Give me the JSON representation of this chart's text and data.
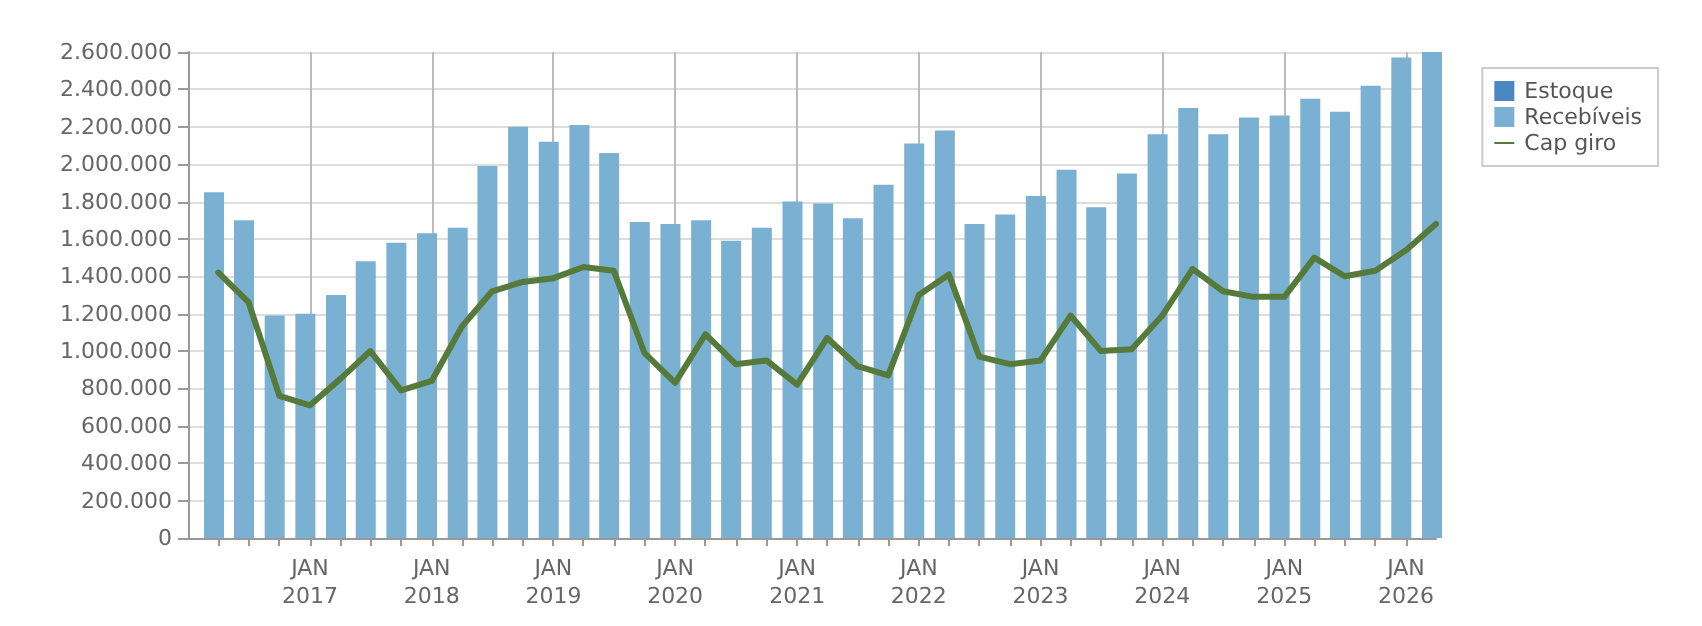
{
  "chart_data": {
    "type": "bar",
    "xlim": [
      "2016-01-01",
      "2026-04-01"
    ],
    "xticks": [
      {
        "value": "2016-04-01",
        "label": null
      },
      {
        "value": "2016-07-01",
        "label": null
      },
      {
        "value": "2016-10-01",
        "label": null
      },
      {
        "value": "2017-01-01",
        "label": "JAN\n2017"
      },
      {
        "value": "2017-04-01",
        "label": null
      },
      {
        "value": "2017-07-01",
        "label": null
      },
      {
        "value": "2017-10-01",
        "label": null
      },
      {
        "value": "2018-01-01",
        "label": "JAN\n2018"
      },
      {
        "value": "2018-04-01",
        "label": null
      },
      {
        "value": "2018-07-01",
        "label": null
      },
      {
        "value": "2018-10-01",
        "label": null
      },
      {
        "value": "2019-01-01",
        "label": "JAN\n2019"
      },
      {
        "value": "2019-04-01",
        "label": null
      },
      {
        "value": "2019-07-01",
        "label": null
      },
      {
        "value": "2019-10-01",
        "label": null
      },
      {
        "value": "2020-01-01",
        "label": "JAN\n2020"
      },
      {
        "value": "2020-04-01",
        "label": null
      },
      {
        "value": "2020-07-01",
        "label": null
      },
      {
        "value": "2020-10-01",
        "label": null
      },
      {
        "value": "2021-01-01",
        "label": "JAN\n2021"
      },
      {
        "value": "2021-04-01",
        "label": null
      },
      {
        "value": "2021-07-01",
        "label": null
      },
      {
        "value": "2021-10-01",
        "label": null
      },
      {
        "value": "2022-01-01",
        "label": "JAN\n2022"
      },
      {
        "value": "2022-04-01",
        "label": null
      },
      {
        "value": "2022-07-01",
        "label": null
      },
      {
        "value": "2022-10-01",
        "label": null
      },
      {
        "value": "2023-01-01",
        "label": "JAN\n2023"
      },
      {
        "value": "2023-04-01",
        "label": null
      },
      {
        "value": "2023-07-01",
        "label": null
      },
      {
        "value": "2023-10-01",
        "label": null
      },
      {
        "value": "2024-01-01",
        "label": "JAN\n2024"
      },
      {
        "value": "2024-04-01",
        "label": null
      },
      {
        "value": "2024-07-01",
        "label": null
      },
      {
        "value": "2024-10-01",
        "label": null
      },
      {
        "value": "2025-01-01",
        "label": "JAN\n2025"
      },
      {
        "value": "2025-04-01",
        "label": null
      },
      {
        "value": "2025-07-01",
        "label": null
      },
      {
        "value": "2025-10-01",
        "label": null
      },
      {
        "value": "2026-01-01",
        "label": "JAN\n2026"
      }
    ],
    "x": [
      "2016-02-15",
      "2016-05-15",
      "2016-08-15",
      "2016-11-15",
      "2017-02-15",
      "2017-05-15",
      "2017-08-15",
      "2017-11-15",
      "2018-02-15",
      "2018-05-15",
      "2018-08-15",
      "2018-11-15",
      "2019-02-15",
      "2019-05-15",
      "2019-08-15",
      "2019-11-15",
      "2020-02-15",
      "2020-05-15",
      "2020-08-15",
      "2020-11-15",
      "2021-02-15",
      "2021-05-15",
      "2021-08-15",
      "2021-11-15",
      "2022-02-15",
      "2022-05-15",
      "2022-08-15",
      "2022-11-15",
      "2023-02-15",
      "2023-05-15",
      "2023-08-15",
      "2023-11-15",
      "2024-02-15",
      "2024-05-15",
      "2024-08-15",
      "2024-11-15",
      "2025-02-15",
      "2025-05-15",
      "2025-08-15",
      "2025-11-15",
      "2026-02-15"
    ],
    "ylim": [
      0,
      2600000
    ],
    "yticks": [
      {
        "value": 0,
        "label": "0"
      },
      {
        "value": 200000,
        "label": "200.000"
      },
      {
        "value": 400000,
        "label": "400.000"
      },
      {
        "value": 600000,
        "label": "600.000"
      },
      {
        "value": 800000,
        "label": "800.000"
      },
      {
        "value": 1000000,
        "label": "1.000.000"
      },
      {
        "value": 1200000,
        "label": "1.200.000"
      },
      {
        "value": 1400000,
        "label": "1.400.000"
      },
      {
        "value": 1600000,
        "label": "1.600.000"
      },
      {
        "value": 1800000,
        "label": "1.800.000"
      },
      {
        "value": 2000000,
        "label": "2.000.000"
      },
      {
        "value": 2200000,
        "label": "2.200.000"
      },
      {
        "value": 2400000,
        "label": "2.400.000"
      },
      {
        "value": 2600000,
        "label": "2.600.000"
      }
    ],
    "grid": true,
    "legend": "top right",
    "series": [
      {
        "name": "Estoque",
        "color": "#4a86c0",
        "values": [
          null,
          null,
          null,
          null,
          null,
          null,
          null,
          null,
          null,
          null,
          null,
          null,
          null,
          null,
          null,
          null,
          null,
          null,
          null,
          null,
          null,
          null,
          null,
          null,
          null,
          null,
          null,
          null,
          null,
          null,
          null,
          null,
          null,
          null,
          null,
          null,
          null,
          null,
          null,
          null,
          null
        ]
      },
      {
        "name": "Recebíveis",
        "color": "#7ab0d2",
        "values": [
          1850000,
          1700000,
          1190000,
          1200000,
          1300000,
          1480000,
          1580000,
          1630000,
          1660000,
          1990000,
          2200000,
          2120000,
          2210000,
          2060000,
          1690000,
          1680000,
          1700000,
          1590000,
          1660000,
          1800000,
          1790000,
          1710000,
          1890000,
          2110000,
          2180000,
          1680000,
          1730000,
          1830000,
          1970000,
          1770000,
          1950000,
          2160000,
          2300000,
          2160000,
          2250000,
          2260000,
          2350000,
          2280000,
          2420000,
          2570000,
          2600000
        ]
      },
      {
        "name": "Cap giro",
        "type": "line",
        "color": "#557a3a",
        "marker": "none",
        "line_style": "solid",
        "x": [
          "2016-04-01",
          "2016-07-01",
          "2016-10-01",
          "2017-01-01",
          "2017-04-01",
          "2017-07-01",
          "2017-10-01",
          "2018-01-01",
          "2018-04-01",
          "2018-07-01",
          "2018-10-01",
          "2019-01-01",
          "2019-04-01",
          "2019-07-01",
          "2019-10-01",
          "2020-01-01",
          "2020-04-01",
          "2020-07-01",
          "2020-10-01",
          "2021-01-01",
          "2021-04-01",
          "2021-07-01",
          "2021-10-01",
          "2022-01-01",
          "2022-04-01",
          "2022-07-01",
          "2022-10-01",
          "2023-01-01",
          "2023-04-01",
          "2023-07-01",
          "2023-10-01",
          "2024-01-01",
          "2024-04-01",
          "2024-07-01",
          "2024-10-01",
          "2025-01-01",
          "2025-04-01",
          "2025-07-01",
          "2025-10-01",
          "2026-01-01",
          "2026-04-01"
        ],
        "values": [
          1420000,
          1260000,
          760000,
          710000,
          850000,
          1000000,
          790000,
          840000,
          1130000,
          1320000,
          1370000,
          1390000,
          1450000,
          1430000,
          990000,
          830000,
          1090000,
          930000,
          950000,
          820000,
          1070000,
          920000,
          870000,
          1300000,
          1410000,
          970000,
          930000,
          950000,
          1190000,
          1000000,
          1010000,
          1190000,
          1440000,
          1320000,
          1290000,
          1290000,
          1500000,
          1400000,
          1430000,
          1540000,
          1680000
        ]
      }
    ]
  }
}
